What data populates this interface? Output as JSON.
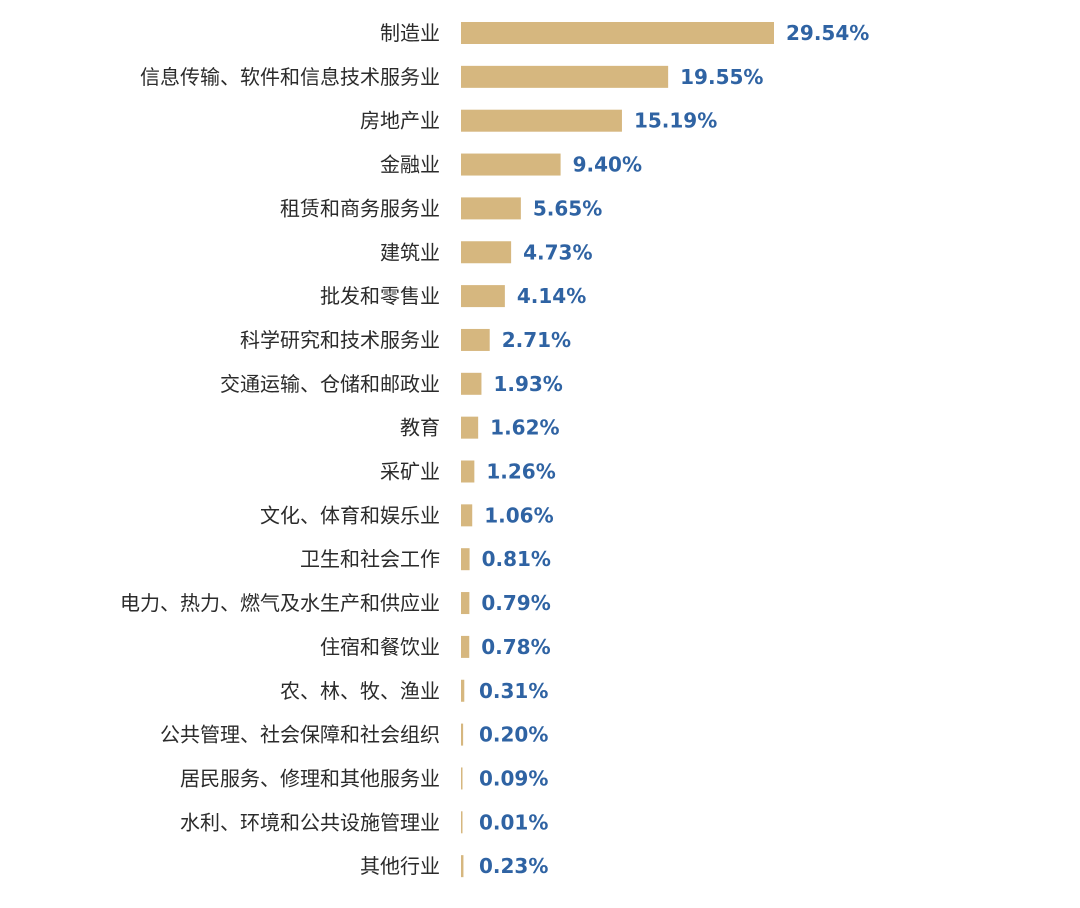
{
  "chart_data": {
    "type": "bar",
    "orientation": "horizontal",
    "title": "",
    "xlabel": "",
    "ylabel": "",
    "grid": false,
    "value_suffix": "%",
    "bar_color": "#d6b77f",
    "value_label_color": "#2f63a3",
    "categories": [
      "制造业",
      "信息传输、软件和信息技术服务业",
      "房地产业",
      "金融业",
      "租赁和商务服务业",
      "建筑业",
      "批发和零售业",
      "科学研究和技术服务业",
      "交通运输、仓储和邮政业",
      "教育",
      "采矿业",
      "文化、体育和娱乐业",
      "卫生和社会工作",
      "电力、热力、燃气及水生产和供应业",
      "住宿和餐饮业",
      "农、林、牧、渔业",
      "公共管理、社会保障和社会组织",
      "居民服务、修理和其他服务业",
      "水利、环境和公共设施管理业",
      "其他行业"
    ],
    "values": [
      29.54,
      19.55,
      15.19,
      9.4,
      5.65,
      4.73,
      4.14,
      2.71,
      1.93,
      1.62,
      1.26,
      1.06,
      0.81,
      0.79,
      0.78,
      0.31,
      0.2,
      0.09,
      0.01,
      0.23
    ],
    "value_labels": [
      "29.54%",
      "19.55%",
      "15.19%",
      "9.40%",
      "5.65%",
      "4.73%",
      "4.14%",
      "2.71%",
      "1.93%",
      "1.62%",
      "1.26%",
      "1.06%",
      "0.81%",
      "0.79%",
      "0.78%",
      "0.31%",
      "0.20%",
      "0.09%",
      "0.01%",
      "0.23%"
    ]
  }
}
